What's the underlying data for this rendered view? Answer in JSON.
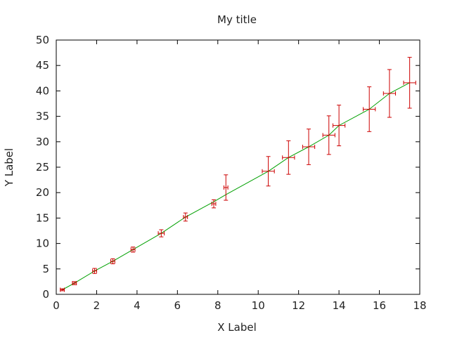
{
  "chart_data": {
    "type": "scatter",
    "title": "My title",
    "xlabel": "X Label",
    "ylabel": "Y Label",
    "xlim": [
      0,
      18
    ],
    "ylim": [
      0,
      50
    ],
    "xticks": [
      0,
      2,
      4,
      6,
      8,
      10,
      12,
      14,
      16,
      18
    ],
    "yticks": [
      0,
      5,
      10,
      15,
      20,
      25,
      30,
      35,
      40,
      45,
      50
    ],
    "grid": false,
    "colors": {
      "errorbars": "#cc0000",
      "fit_line": "#00a000",
      "axes": "#000000"
    },
    "points": [
      {
        "x": 0.3,
        "y": 0.9,
        "xerr": 0.1,
        "yerr": 0.2
      },
      {
        "x": 0.9,
        "y": 2.2,
        "xerr": 0.1,
        "yerr": 0.3
      },
      {
        "x": 1.9,
        "y": 4.6,
        "xerr": 0.1,
        "yerr": 0.5
      },
      {
        "x": 2.8,
        "y": 6.5,
        "xerr": 0.1,
        "yerr": 0.5
      },
      {
        "x": 3.8,
        "y": 8.8,
        "xerr": 0.1,
        "yerr": 0.5
      },
      {
        "x": 5.2,
        "y": 12.0,
        "xerr": 0.15,
        "yerr": 0.7
      },
      {
        "x": 6.4,
        "y": 15.2,
        "xerr": 0.1,
        "yerr": 0.8
      },
      {
        "x": 7.8,
        "y": 17.8,
        "xerr": 0.1,
        "yerr": 0.8
      },
      {
        "x": 8.4,
        "y": 21.0,
        "xerr": 0.1,
        "yerr": 2.5
      },
      {
        "x": 10.5,
        "y": 24.2,
        "xerr": 0.3,
        "yerr": 2.9
      },
      {
        "x": 11.5,
        "y": 26.9,
        "xerr": 0.3,
        "yerr": 3.3
      },
      {
        "x": 12.5,
        "y": 29.0,
        "xerr": 0.3,
        "yerr": 3.5
      },
      {
        "x": 13.5,
        "y": 31.3,
        "xerr": 0.3,
        "yerr": 3.8
      },
      {
        "x": 14.0,
        "y": 33.2,
        "xerr": 0.3,
        "yerr": 4.0
      },
      {
        "x": 15.5,
        "y": 36.4,
        "xerr": 0.3,
        "yerr": 4.4
      },
      {
        "x": 16.5,
        "y": 39.5,
        "xerr": 0.3,
        "yerr": 4.7
      },
      {
        "x": 17.5,
        "y": 41.6,
        "xerr": 0.3,
        "yerr": 5.0
      }
    ],
    "fit_line": [
      {
        "x": 0.3,
        "y": 0.9
      },
      {
        "x": 0.9,
        "y": 2.2
      },
      {
        "x": 1.9,
        "y": 4.6
      },
      {
        "x": 2.8,
        "y": 6.5
      },
      {
        "x": 3.8,
        "y": 8.8
      },
      {
        "x": 5.2,
        "y": 12.0
      },
      {
        "x": 6.4,
        "y": 15.2
      },
      {
        "x": 7.8,
        "y": 18.2
      },
      {
        "x": 8.4,
        "y": 19.6
      },
      {
        "x": 10.5,
        "y": 24.2
      },
      {
        "x": 11.5,
        "y": 26.9
      },
      {
        "x": 12.5,
        "y": 29.0
      },
      {
        "x": 13.5,
        "y": 31.3
      },
      {
        "x": 14.0,
        "y": 33.2
      },
      {
        "x": 15.5,
        "y": 36.4
      },
      {
        "x": 16.5,
        "y": 39.5
      },
      {
        "x": 17.5,
        "y": 41.6
      }
    ]
  }
}
